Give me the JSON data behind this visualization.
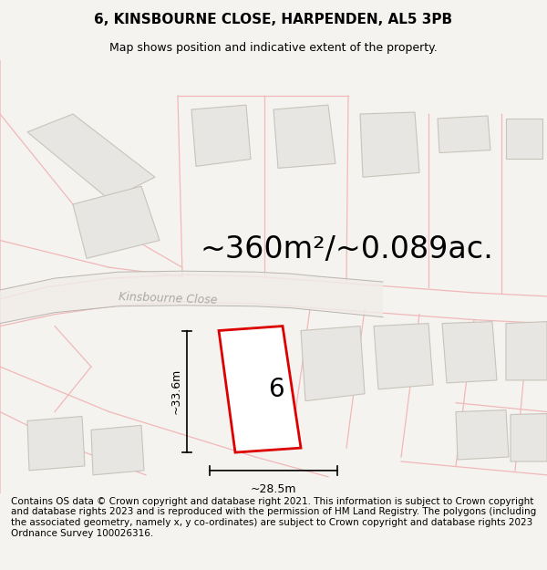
{
  "title": "6, KINSBOURNE CLOSE, HARPENDEN, AL5 3PB",
  "subtitle": "Map shows position and indicative extent of the property.",
  "area_text": "~360m²/~0.089ac.",
  "label_6": "6",
  "dim_horizontal": "~28.5m",
  "dim_vertical": "~33.6m",
  "street_label": "Kinsbourne Close",
  "footer": "Contains OS data © Crown copyright and database right 2021. This information is subject to Crown copyright and database rights 2023 and is reproduced with the permission of HM Land Registry. The polygons (including the associated geometry, namely x, y co-ordinates) are subject to Crown copyright and database rights 2023 Ordnance Survey 100026316.",
  "bg_color": "#f5f3f0",
  "map_bg": "#ffffff",
  "plot_color": "#dd0000",
  "road_color": "#f0ede8",
  "road_edge_color": "#d8b8b8",
  "building_fill": "#e8e6e2",
  "building_stroke": "#c8c4bc",
  "parcel_stroke": "#f0b8b8",
  "title_fontsize": 11,
  "subtitle_fontsize": 9,
  "area_fontsize": 24,
  "footer_fontsize": 7.5,
  "dim_fontsize": 9,
  "street_fontsize": 9,
  "label6_fontsize": 20
}
